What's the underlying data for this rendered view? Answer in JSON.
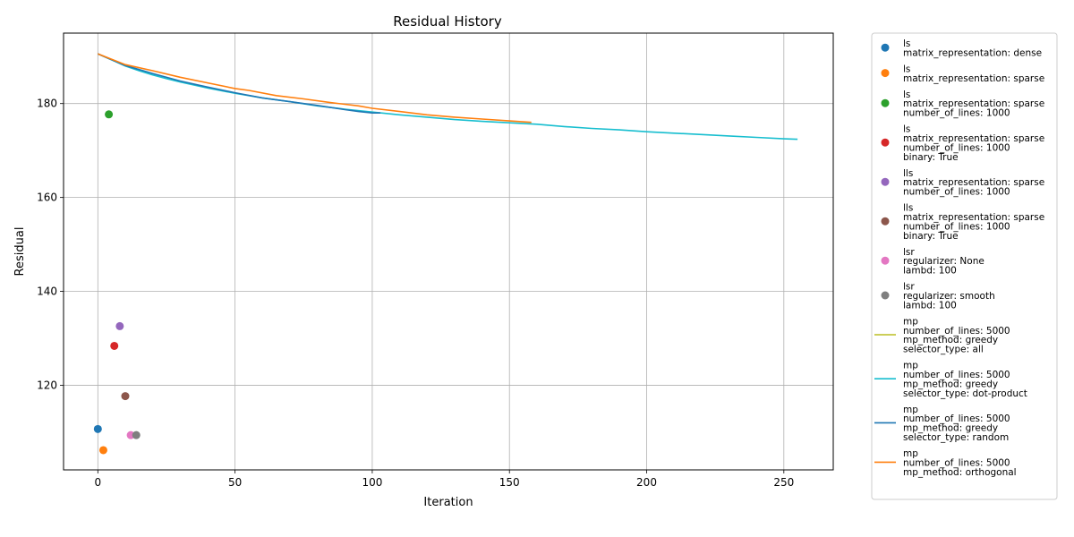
{
  "chart_data": {
    "type": "scatter",
    "title": "Residual History",
    "xlabel": "Iteration",
    "ylabel": "Residual",
    "xlim": [
      -12.5,
      268
    ],
    "ylim": [
      102,
      195
    ],
    "xticks": [
      0,
      50,
      100,
      150,
      200,
      250
    ],
    "yticks": [
      120,
      140,
      160,
      180
    ],
    "grid": true,
    "legend_position": "outside-right",
    "series": [
      {
        "name_lines": [
          "ls",
          "matrix_representation: dense"
        ],
        "kind": "point",
        "color": "#1f77b4",
        "x": [
          0
        ],
        "y": [
          110.7
        ]
      },
      {
        "name_lines": [
          "ls",
          "matrix_representation: sparse"
        ],
        "kind": "point",
        "color": "#ff7f0e",
        "x": [
          2
        ],
        "y": [
          106.2
        ]
      },
      {
        "name_lines": [
          "ls",
          "matrix_representation: sparse",
          "number_of_lines: 1000"
        ],
        "kind": "point",
        "color": "#2ca02c",
        "x": [
          4
        ],
        "y": [
          177.7
        ]
      },
      {
        "name_lines": [
          "ls",
          "matrix_representation: sparse",
          "number_of_lines: 1000",
          "binary: True"
        ],
        "kind": "point",
        "color": "#d62728",
        "x": [
          6
        ],
        "y": [
          128.4
        ]
      },
      {
        "name_lines": [
          "lls",
          "matrix_representation: sparse",
          "number_of_lines: 1000"
        ],
        "kind": "point",
        "color": "#9467bd",
        "x": [
          8
        ],
        "y": [
          132.6
        ]
      },
      {
        "name_lines": [
          "lls",
          "matrix_representation: sparse",
          "number_of_lines: 1000",
          "binary: True"
        ],
        "kind": "point",
        "color": "#8c564b",
        "x": [
          10
        ],
        "y": [
          117.7
        ]
      },
      {
        "name_lines": [
          "lsr",
          "regularizer: None",
          "lambd: 100"
        ],
        "kind": "point",
        "color": "#e377c2",
        "x": [
          12
        ],
        "y": [
          109.4
        ]
      },
      {
        "name_lines": [
          "lsr",
          "regularizer: smooth",
          "lambd: 100"
        ],
        "kind": "point",
        "color": "#7f7f7f",
        "x": [
          14
        ],
        "y": [
          109.4
        ]
      },
      {
        "name_lines": [
          "mp",
          "number_of_lines: 5000",
          "mp_method: greedy",
          "selector_type: all"
        ],
        "kind": "line",
        "color": "#bcbd22",
        "x": [],
        "y": []
      },
      {
        "name_lines": [
          "mp",
          "number_of_lines: 5000",
          "mp_method: greedy",
          "selector_type: dot-product"
        ],
        "kind": "line",
        "color": "#17becf",
        "x": [
          0,
          5,
          10,
          15,
          20,
          25,
          30,
          40,
          50,
          60,
          70,
          80,
          90,
          100,
          110,
          120,
          130,
          140,
          150,
          160,
          170,
          180,
          190,
          200,
          210,
          220,
          230,
          240,
          250,
          255
        ],
        "y": [
          190.6,
          189.3,
          188.0,
          187.0,
          186.1,
          185.3,
          184.6,
          183.3,
          182.2,
          181.2,
          180.4,
          179.5,
          178.8,
          178.2,
          177.6,
          177.1,
          176.6,
          176.2,
          175.9,
          175.6,
          175.1,
          174.7,
          174.4,
          174.0,
          173.7,
          173.4,
          173.1,
          172.8,
          172.5,
          172.4
        ]
      },
      {
        "name_lines": [
          "mp",
          "number_of_lines: 5000",
          "mp_method: greedy",
          "selector_type: random"
        ],
        "kind": "line",
        "color": "#1f77b4",
        "x": [
          0,
          10,
          20,
          30,
          40,
          50,
          60,
          70,
          80,
          90,
          95,
          100,
          103
        ],
        "y": [
          190.6,
          188.1,
          186.4,
          184.8,
          183.5,
          182.3,
          181.2,
          180.4,
          179.6,
          178.7,
          178.3,
          178.0,
          178.0
        ]
      },
      {
        "name_lines": [
          "mp",
          "number_of_lines: 5000",
          "mp_method: orthogonal"
        ],
        "kind": "line",
        "color": "#ff7f0e",
        "x": [
          0,
          10,
          20,
          30,
          40,
          50,
          55,
          65,
          75,
          85,
          95,
          100,
          110,
          120,
          130,
          140,
          150,
          158
        ],
        "y": [
          190.6,
          188.3,
          187.0,
          185.6,
          184.4,
          183.2,
          182.8,
          181.7,
          181.0,
          180.2,
          179.5,
          179.0,
          178.3,
          177.6,
          177.1,
          176.7,
          176.3,
          176.0
        ]
      }
    ]
  }
}
